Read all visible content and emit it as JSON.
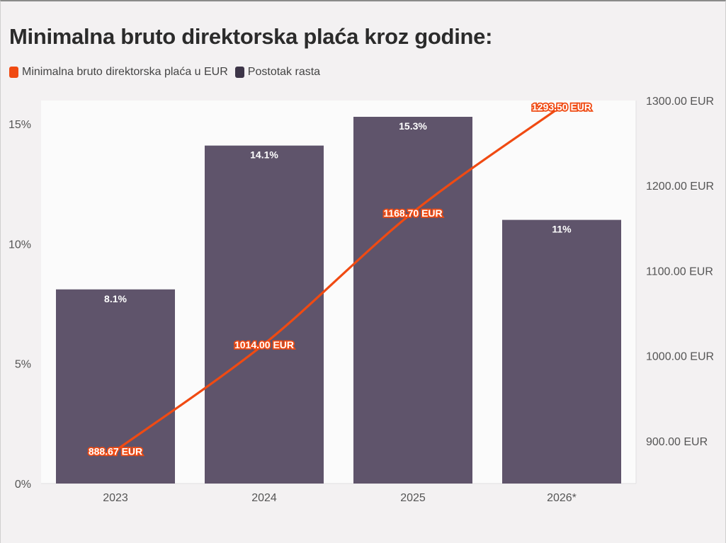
{
  "chart_data": {
    "type": "bar",
    "title": "Minimalna bruto direktorska plaća kroz godine:",
    "categories": [
      "2023",
      "2024",
      "2025",
      "2026*"
    ],
    "series": [
      {
        "name": "Minimalna bruto direktorska plaća u EUR",
        "type": "line",
        "axis": "right",
        "color": "#f04a12",
        "values": [
          888.67,
          1014.0,
          1168.7,
          1293.5
        ],
        "labels": [
          "888.67 EUR",
          "1014.00 EUR",
          "1168.70 EUR",
          "1293.50 EUR"
        ]
      },
      {
        "name": "Postotak rasta",
        "type": "bar",
        "axis": "left",
        "color": "#5f546b",
        "values": [
          8.1,
          14.1,
          15.3,
          11
        ],
        "labels": [
          "8.1%",
          "14.1%",
          "15.3%",
          "11%"
        ]
      }
    ],
    "left_axis": {
      "ylim": [
        0,
        15.3
      ],
      "ticks": [
        0,
        5,
        10,
        15
      ],
      "tick_labels": [
        "0%",
        "5%",
        "10%",
        "15%"
      ]
    },
    "right_axis": {
      "ylim": [
        850,
        1300
      ],
      "ticks": [
        900,
        1000,
        1100,
        1200,
        1300
      ],
      "tick_labels": [
        "900.00 EUR",
        "1000.00 EUR",
        "1100.00 EUR",
        "1200.00 EUR",
        "1300.00 EUR"
      ]
    },
    "legend_position": "top-left",
    "grid": false
  }
}
